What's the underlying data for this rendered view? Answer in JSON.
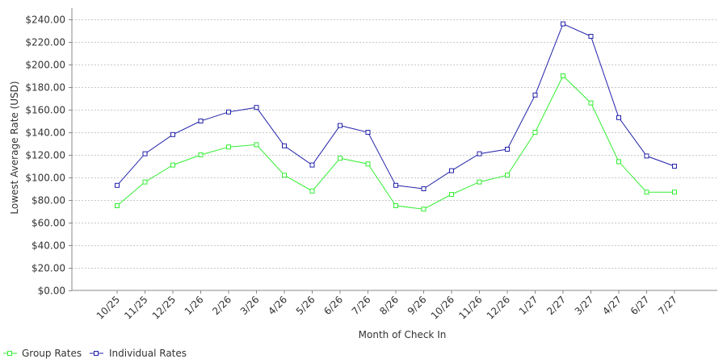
{
  "chart_data": {
    "type": "line",
    "title": "",
    "xlabel": "Month of Check In",
    "ylabel": "Lowest Average Rate (USD)",
    "ylim": [
      0,
      250
    ],
    "y_ticks": [
      "$0.00",
      "$20.00",
      "$40.00",
      "$60.00",
      "$80.00",
      "$100.00",
      "$120.00",
      "$140.00",
      "$160.00",
      "$180.00",
      "$200.00",
      "$220.00",
      "$240.00"
    ],
    "grid": true,
    "legend_position": "bottom-left",
    "categories": [
      "10/25",
      "11/25",
      "12/25",
      "1/26",
      "2/26",
      "3/26",
      "4/26",
      "5/26",
      "6/26",
      "7/26",
      "8/26",
      "9/26",
      "10/26",
      "11/26",
      "12/26",
      "1/27",
      "2/27",
      "3/27",
      "4/27",
      "6/27",
      "7/27"
    ],
    "series": [
      {
        "name": "Group Rates",
        "color": "#33ee33",
        "values": [
          75,
          96,
          111,
          120,
          127,
          129,
          102,
          88,
          117,
          112,
          75,
          72,
          85,
          96,
          102,
          140,
          190,
          166,
          114,
          87,
          87
        ]
      },
      {
        "name": "Individual Rates",
        "color": "#2222aa",
        "values": [
          93,
          121,
          138,
          150,
          158,
          162,
          128,
          111,
          146,
          140,
          93,
          90,
          106,
          121,
          125,
          173,
          236,
          225,
          153,
          119,
          110
        ]
      }
    ]
  }
}
